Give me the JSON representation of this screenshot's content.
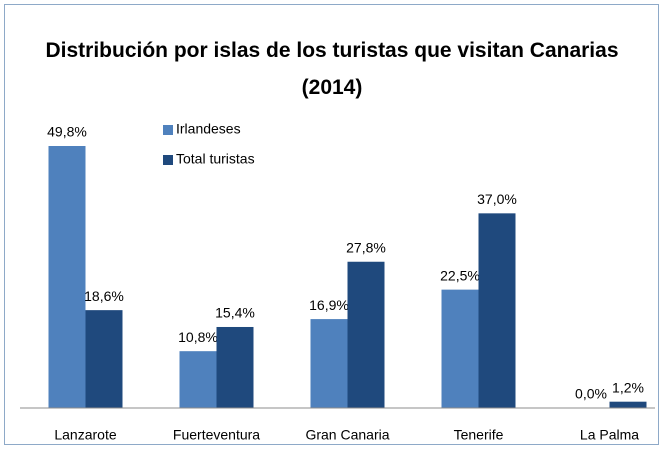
{
  "chart_data": {
    "type": "bar",
    "title": "Distribución por islas de los turistas que visitan Canarias (2014)",
    "categories": [
      "Lanzarote",
      "Fuerteventura",
      "Gran Canaria",
      "Tenerife",
      "La Palma"
    ],
    "series": [
      {
        "name": "Irlandeses",
        "color": "#4f81bd",
        "values": [
          49.8,
          10.8,
          16.9,
          22.5,
          0.0
        ],
        "value_labels": [
          "49,8%",
          "10,8%",
          "16,9%",
          "22,5%",
          "0,0%"
        ]
      },
      {
        "name": "Total turistas",
        "color": "#1f497d",
        "values": [
          18.6,
          15.4,
          27.8,
          37.0,
          1.2
        ],
        "value_labels": [
          "18,6%",
          "15,4%",
          "27,8%",
          "37,0%",
          "1,2%"
        ]
      }
    ],
    "legend": "upper-left"
  }
}
